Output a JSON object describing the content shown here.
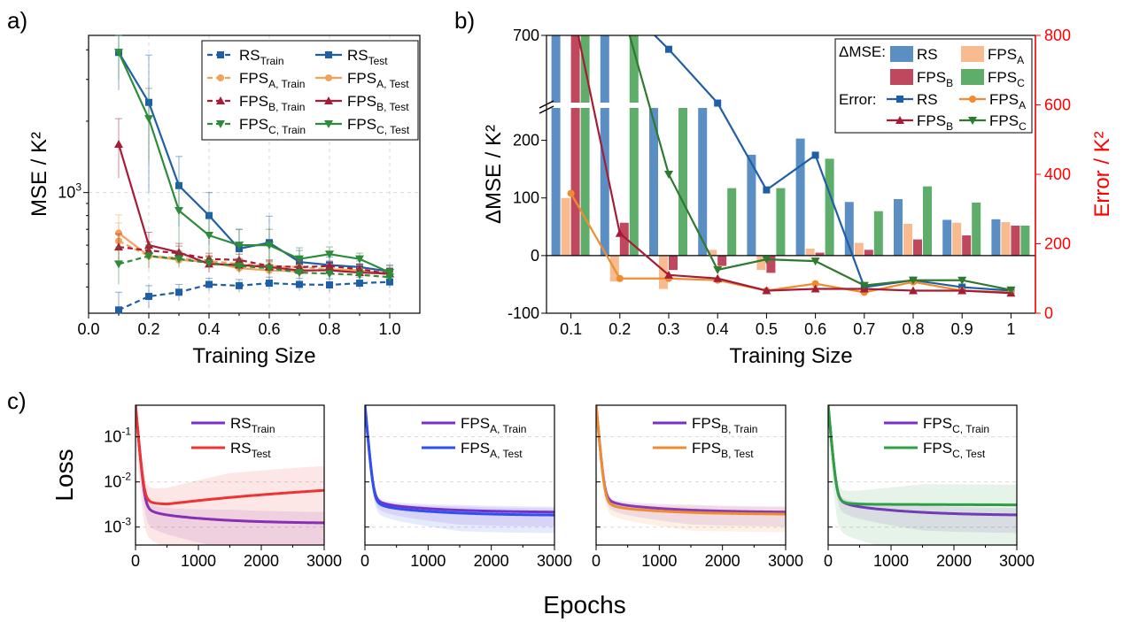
{
  "panel_labels": [
    "a)",
    "b)",
    "c)"
  ],
  "chart_data": [
    {
      "id": "a",
      "type": "line",
      "xlabel": "Training Size",
      "ylabel": "MSE / K²",
      "yscale": "log",
      "xlim": [
        0.0,
        1.1
      ],
      "ylim": [
        310,
        4600
      ],
      "xticks": [
        "0.0",
        "0.2",
        "0.4",
        "0.6",
        "0.8",
        "1.0"
      ],
      "yticks": [
        {
          "value": 1000,
          "label": "10",
          "sup": "3"
        }
      ],
      "grid": true,
      "legend_position": "top-right",
      "x": [
        0.1,
        0.2,
        0.3,
        0.4,
        0.5,
        0.6,
        0.7,
        0.8,
        0.9,
        1.0
      ],
      "series": [
        {
          "name": "RS",
          "sub": "Train",
          "color": "#1f5fa6",
          "dashed": true,
          "marker": "square",
          "values": [
            320,
            365,
            380,
            410,
            405,
            415,
            410,
            408,
            415,
            420
          ],
          "err": [
            60,
            40,
            30,
            25,
            25,
            25,
            25,
            25,
            25,
            25
          ]
        },
        {
          "name": "RS",
          "sub": "Test",
          "color": "#1f5fa6",
          "dashed": false,
          "marker": "square",
          "values": [
            3900,
            2400,
            1070,
            800,
            580,
            615,
            510,
            495,
            485,
            465
          ],
          "err": [
            1200,
            1400,
            350,
            200,
            120,
            180,
            60,
            40,
            30,
            30
          ]
        },
        {
          "name": "FPS",
          "sub": "A, Train",
          "color": "#f4a259",
          "dashed": true,
          "marker": "circle",
          "values": [
            625,
            540,
            530,
            515,
            500,
            490,
            485,
            475,
            470,
            450
          ],
          "err": [
            120,
            60,
            40,
            30,
            30,
            30,
            30,
            25,
            25,
            25
          ]
        },
        {
          "name": "FPS",
          "sub": "A, Test",
          "color": "#f4a259",
          "dashed": false,
          "marker": "circle",
          "values": [
            675,
            540,
            520,
            510,
            480,
            470,
            465,
            475,
            470,
            455
          ],
          "err": [
            130,
            60,
            40,
            30,
            30,
            30,
            30,
            25,
            25,
            25
          ]
        },
        {
          "name": "FPS",
          "sub": "B, Train",
          "color": "#a61c36",
          "dashed": true,
          "marker": "triangle",
          "values": [
            590,
            570,
            555,
            525,
            520,
            490,
            485,
            490,
            475,
            455
          ],
          "err": [
            80,
            50,
            40,
            30,
            30,
            30,
            30,
            25,
            25,
            25
          ]
        },
        {
          "name": "FPS",
          "sub": "B, Test",
          "color": "#a61c36",
          "dashed": false,
          "marker": "triangle",
          "values": [
            1600,
            600,
            560,
            500,
            495,
            485,
            470,
            470,
            460,
            455
          ],
          "err": [
            450,
            80,
            50,
            40,
            30,
            30,
            30,
            25,
            25,
            25
          ]
        },
        {
          "name": "FPS",
          "sub": "C, Train",
          "color": "#2e8b3a",
          "dashed": true,
          "marker": "triangle-down",
          "values": [
            500,
            540,
            525,
            505,
            490,
            480,
            460,
            455,
            450,
            440
          ],
          "err": [
            90,
            60,
            40,
            30,
            30,
            30,
            25,
            25,
            25,
            25
          ]
        },
        {
          "name": "FPS",
          "sub": "C, Test",
          "color": "#2e8b3a",
          "dashed": false,
          "marker": "triangle-down",
          "values": [
            3900,
            2050,
            840,
            660,
            600,
            600,
            525,
            550,
            525,
            460
          ],
          "err": [
            900,
            700,
            250,
            150,
            100,
            100,
            60,
            40,
            30,
            30
          ]
        }
      ]
    },
    {
      "id": "b",
      "type": "bar+line",
      "xlabel": "Training Size",
      "ylabel": "ΔMSE / K²",
      "y2label": "Error / K²",
      "categories": [
        "0.1",
        "0.2",
        "0.3",
        "0.4",
        "0.5",
        "0.6",
        "0.7",
        "0.8",
        "0.9",
        "1"
      ],
      "ylim": [
        -100,
        700
      ],
      "y_axis_break": [
        250,
        650
      ],
      "yticks": [
        -100,
        0,
        100,
        200,
        700
      ],
      "y2lim": [
        0,
        800
      ],
      "y2ticks": [
        0,
        200,
        400,
        600,
        800
      ],
      "y2_color": "#ff0000",
      "legend_position": "top-right",
      "legend_headers": [
        "ΔMSE:",
        "Error:"
      ],
      "bars": [
        {
          "name": "RS",
          "sub": "",
          "color": "#5b8fc4",
          "values": [
            700,
            700,
            520,
            365,
            175,
            203,
            93,
            98,
            62,
            63
          ]
        },
        {
          "name": "FPS",
          "sub": "A",
          "color": "#f7bb8f",
          "values": [
            100,
            -45,
            -58,
            10,
            -25,
            12,
            22,
            55,
            57,
            58
          ]
        },
        {
          "name": "FPS",
          "sub": "B",
          "color": "#c0485e",
          "values": [
            700,
            57,
            -25,
            -18,
            -30,
            5,
            10,
            28,
            35,
            52
          ]
        },
        {
          "name": "FPS",
          "sub": "C",
          "color": "#5fad6a",
          "values": [
            700,
            700,
            365,
            117,
            117,
            168,
            77,
            120,
            92,
            52
          ]
        }
      ],
      "lines": [
        {
          "name": "RS",
          "sub": "",
          "color": "#1f5fa6",
          "marker": "square",
          "values": [
            900,
            900,
            760,
            605,
            355,
            455,
            75,
            95,
            75,
            65
          ]
        },
        {
          "name": "FPS",
          "sub": "A",
          "color": "#f08c2e",
          "marker": "circle",
          "values": [
            345,
            100,
            100,
            95,
            65,
            85,
            60,
            90,
            65,
            60
          ]
        },
        {
          "name": "FPS",
          "sub": "B",
          "color": "#a61c36",
          "marker": "triangle",
          "values": [
            900,
            230,
            110,
            100,
            65,
            70,
            70,
            65,
            65,
            58
          ]
        },
        {
          "name": "FPS",
          "sub": "C",
          "color": "#2e7a2e",
          "marker": "triangle-down",
          "values": [
            900,
            900,
            400,
            125,
            155,
            150,
            80,
            95,
            95,
            67
          ]
        }
      ]
    },
    {
      "id": "c1",
      "type": "line",
      "ylabel": "Loss",
      "yscale": "log",
      "xlim": [
        0,
        3000
      ],
      "xticks": [
        "0",
        "1000",
        "2000",
        "3000"
      ],
      "yticks": [
        {
          "value": 0.001,
          "label": "10",
          "sup": "-3"
        },
        {
          "value": 0.01,
          "label": "10",
          "sup": "-2"
        },
        {
          "value": 0.1,
          "label": "10",
          "sup": "-1"
        }
      ],
      "legend_position": "top-right",
      "band": true,
      "series": [
        {
          "name": "RS",
          "sub": "Train",
          "color": "#7b2fc9",
          "start": 0.5,
          "mid": 0.0023,
          "end": 0.0012,
          "rise": 0,
          "spread": 0.4
        },
        {
          "name": "RS",
          "sub": "Test",
          "color": "#ee3333",
          "start": 0.5,
          "mid": 0.0032,
          "end": 0.0065,
          "rise": 1,
          "spread": 0.9
        }
      ]
    },
    {
      "id": "c2",
      "type": "line",
      "yscale": "log",
      "xlim": [
        0,
        3000
      ],
      "xticks": [
        "0",
        "1000",
        "2000",
        "3000"
      ],
      "legend_position": "top-right",
      "band": true,
      "series": [
        {
          "name": "FPS",
          "sub": "A, Train",
          "color": "#7b2fc9",
          "start": 0.5,
          "mid": 0.0035,
          "end": 0.0021,
          "rise": 0,
          "spread": 0.2
        },
        {
          "name": "FPS",
          "sub": "A, Test",
          "color": "#2f4ff0",
          "start": 0.5,
          "mid": 0.0031,
          "end": 0.0018,
          "rise": 0,
          "spread": 0.25
        }
      ]
    },
    {
      "id": "c3",
      "type": "line",
      "yscale": "log",
      "xlim": [
        0,
        3000
      ],
      "xticks": [
        "0",
        "1000",
        "2000",
        "3000"
      ],
      "legend_position": "top-right",
      "band": true,
      "series": [
        {
          "name": "FPS",
          "sub": "B, Train",
          "color": "#7b2fc9",
          "start": 0.5,
          "mid": 0.0036,
          "end": 0.0021,
          "rise": 0,
          "spread": 0.2
        },
        {
          "name": "FPS",
          "sub": "B, Test",
          "color": "#f08c2e",
          "start": 0.5,
          "mid": 0.003,
          "end": 0.0019,
          "rise": 0,
          "spread": 0.25
        }
      ]
    },
    {
      "id": "c4",
      "type": "line",
      "yscale": "log",
      "xlim": [
        0,
        3000
      ],
      "xticks": [
        "0",
        "1000",
        "2000",
        "3000"
      ],
      "legend_position": "top-right",
      "band": true,
      "series": [
        {
          "name": "FPS",
          "sub": "C, Train",
          "color": "#7b2fc9",
          "start": 0.5,
          "mid": 0.0035,
          "end": 0.0018,
          "rise": 0,
          "spread": 0.25
        },
        {
          "name": "FPS",
          "sub": "C, Test",
          "color": "#2ea043",
          "start": 0.5,
          "mid": 0.0032,
          "end": 0.0031,
          "rise": 0.15,
          "spread": 0.75
        }
      ]
    }
  ],
  "shared_xlabel": "Epochs"
}
